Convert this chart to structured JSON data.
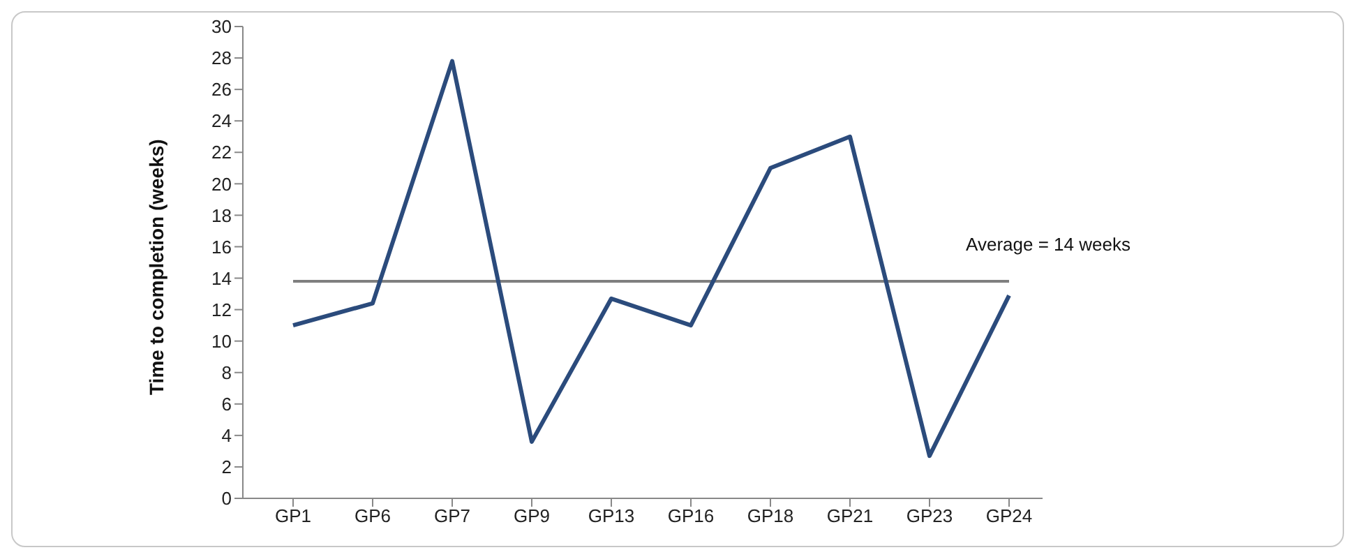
{
  "chart_data": {
    "type": "line",
    "ylabel": "Time to completion (weeks)",
    "categories": [
      "GP1",
      "GP6",
      "GP7",
      "GP9",
      "GP13",
      "GP16",
      "GP18",
      "GP21",
      "GP23",
      "GP24"
    ],
    "series": [
      {
        "color": "#2b4b7c",
        "values": [
          11,
          12.4,
          27.8,
          3.6,
          12.7,
          11,
          21,
          23,
          2.7,
          12.9
        ]
      }
    ],
    "ylim": [
      0,
      30
    ],
    "yticks": [
      0,
      2,
      4,
      6,
      8,
      10,
      12,
      14,
      16,
      18,
      20,
      22,
      24,
      26,
      28,
      30
    ],
    "ref_lines": [
      {
        "axis": "y",
        "value": 13.8,
        "label": "Average = 14 weeks",
        "color": "#7f7f7f"
      }
    ],
    "grid": false,
    "marker": "none",
    "line_style": "solid"
  }
}
